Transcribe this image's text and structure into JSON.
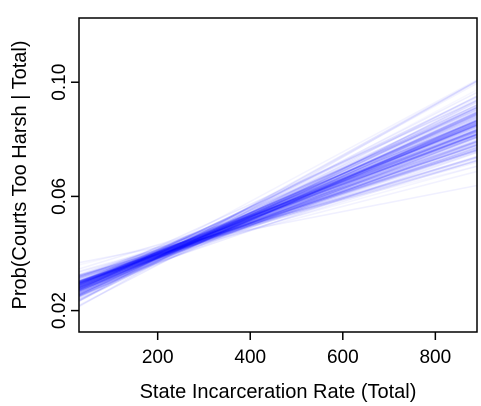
{
  "chart_data": {
    "type": "line",
    "xlabel": "State Incarceration Rate (Total)",
    "ylabel": "Prob(Courts Too Harsh | Total)",
    "xlim": [
      30,
      890
    ],
    "ylim": [
      0.0125,
      0.1225
    ],
    "xticks": [
      200,
      400,
      600,
      800
    ],
    "xtick_labels": [
      "200",
      "400",
      "600",
      "800"
    ],
    "yticks": [
      0.02,
      0.06,
      0.1
    ],
    "ytick_labels": [
      "0.02",
      "0.06",
      "0.10"
    ],
    "grid": false,
    "line_color": "#0000ff",
    "pivot": {
      "x": 240,
      "y": 0.042
    },
    "n_draws": 200,
    "mean_slope": 6.45e-05,
    "slope_sd": 9.5e-06,
    "x_start": 30,
    "x_end": 890
  }
}
